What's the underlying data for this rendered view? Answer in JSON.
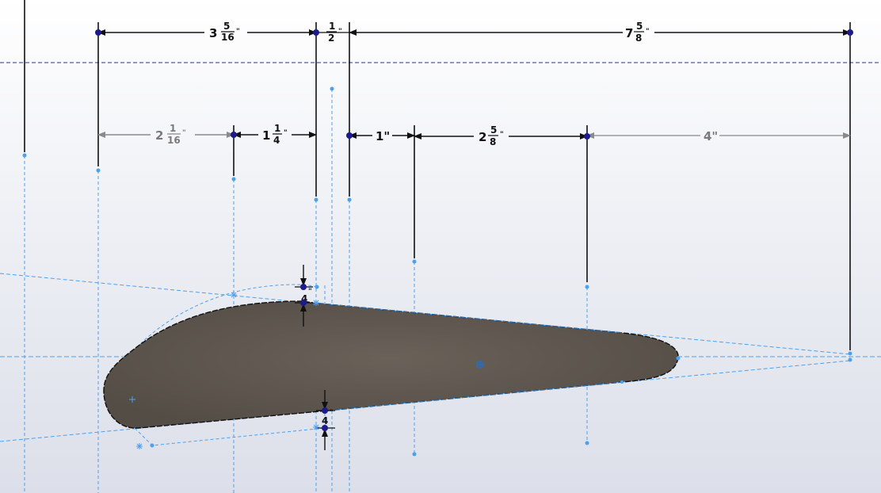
{
  "dimensions": {
    "d1": {
      "whole": "3",
      "num": "5",
      "den": "16",
      "unit": "\""
    },
    "d2": {
      "whole": "",
      "num": "1",
      "den": "2",
      "unit": "\""
    },
    "d3": {
      "whole": "7",
      "num": "5",
      "den": "8",
      "unit": "\""
    },
    "d4": {
      "whole": "2",
      "num": "1",
      "den": "16",
      "unit": "\""
    },
    "d5": {
      "whole": "1",
      "num": "1",
      "den": "4",
      "unit": "\""
    },
    "d6": {
      "text": "1\""
    },
    "d7": {
      "whole": "2",
      "num": "5",
      "den": "8",
      "unit": "\""
    },
    "d8": {
      "text": "4\""
    },
    "d9": {
      "text": "\"",
      "den": "4"
    },
    "d10": {
      "text": "\"",
      "den": "4"
    }
  },
  "colors": {
    "dimension_line": "#111111",
    "driven_dimension": "#8a8a8a",
    "construction": "#4da0ee",
    "profile_fill": "#5e5750",
    "endpoint": "#1d1a8c"
  },
  "icons": {
    "origin": "origin-icon",
    "centerpoint": "centerpoint-icon"
  }
}
